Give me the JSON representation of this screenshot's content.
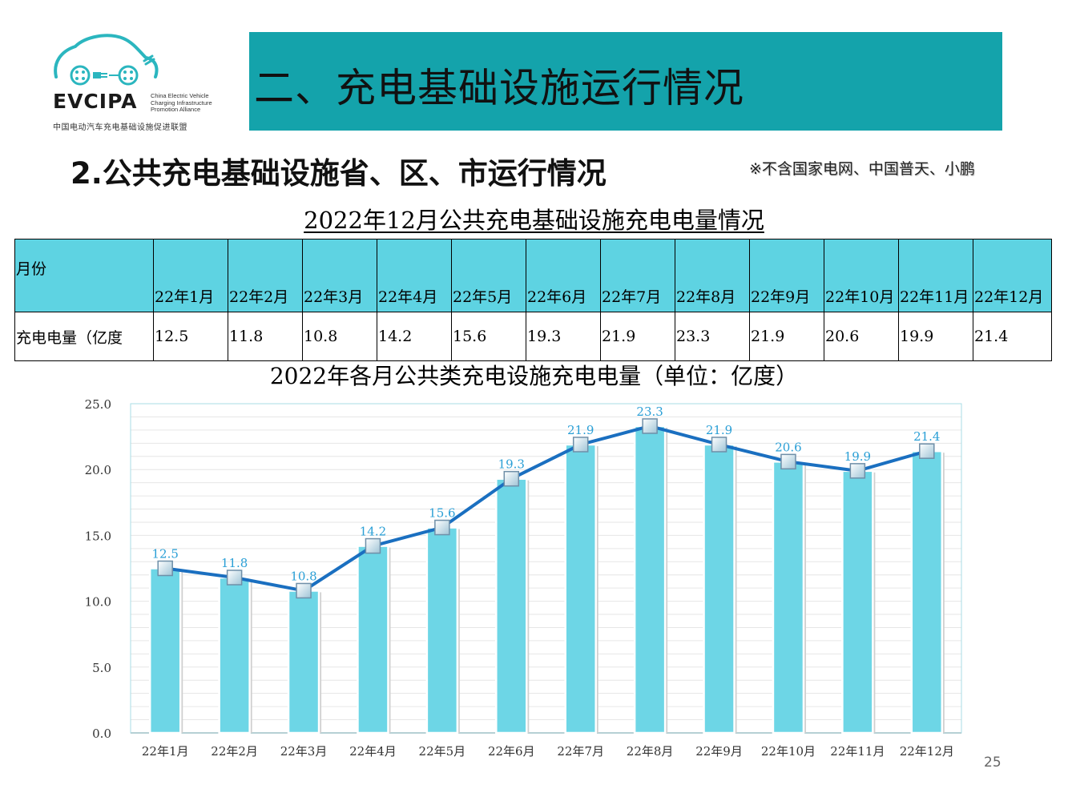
{
  "logo": {
    "brand": "EVCIPA",
    "english": "China Electric Vehicle\nCharging Infrastructure\nPromotion Alliance",
    "chinese": "中国电动汽车充电基础设施促进联盟"
  },
  "header": {
    "title": "二、充电基础设施运行情况"
  },
  "subtitle": "2.公共充电基础设施省、区、市运行情况",
  "note": "※不含国家电网、中国普天、小鹏",
  "table": {
    "title": "2022年12月公共充电基础设施充电电量情况",
    "row_header_month": "月份",
    "row_header_value": "充电电量（亿度",
    "months": [
      "22年1月",
      "22年2月",
      "22年3月",
      "22年4月",
      "22年5月",
      "22年6月",
      "22年7月",
      "22年8月",
      "22年9月",
      "22年10月",
      "22年11月",
      "22年12月"
    ],
    "values": [
      "12.5",
      "11.8",
      "10.8",
      "14.2",
      "15.6",
      "19.3",
      "21.9",
      "23.3",
      "21.9",
      "20.6",
      "19.9",
      "21.4"
    ]
  },
  "chart_data": {
    "type": "bar",
    "title": "2022年各月公共类充电设施充电电量（单位：亿度）",
    "categories": [
      "22年1月",
      "22年2月",
      "22年3月",
      "22年4月",
      "22年5月",
      "22年6月",
      "22年7月",
      "22年8月",
      "22年9月",
      "22年10月",
      "22年11月",
      "22年12月"
    ],
    "values": [
      12.5,
      11.8,
      10.8,
      14.2,
      15.6,
      19.3,
      21.9,
      23.3,
      21.9,
      20.6,
      19.9,
      21.4
    ],
    "value_labels": [
      "12.5",
      "11.8",
      "10.8",
      "14.2",
      "15.6",
      "19.3",
      "21.9",
      "23.3",
      "21.9",
      "20.6",
      "19.9",
      "21.4"
    ],
    "overlay": "line with square markers (same values)",
    "yticks": [
      "0.0",
      "5.0",
      "10.0",
      "15.0",
      "20.0",
      "25.0"
    ],
    "ylim": [
      0,
      25
    ],
    "grid": true,
    "legend": "none",
    "colors": {
      "bar": "#6dd6e6",
      "line": "#1a6fc0",
      "label": "#2a9fd6",
      "grid": "#e6e6e6",
      "plot_border": "#a9dce6"
    }
  },
  "page_number": "25",
  "colors": {
    "banner": "#14a3ab",
    "table_header": "#5ed3e2"
  }
}
